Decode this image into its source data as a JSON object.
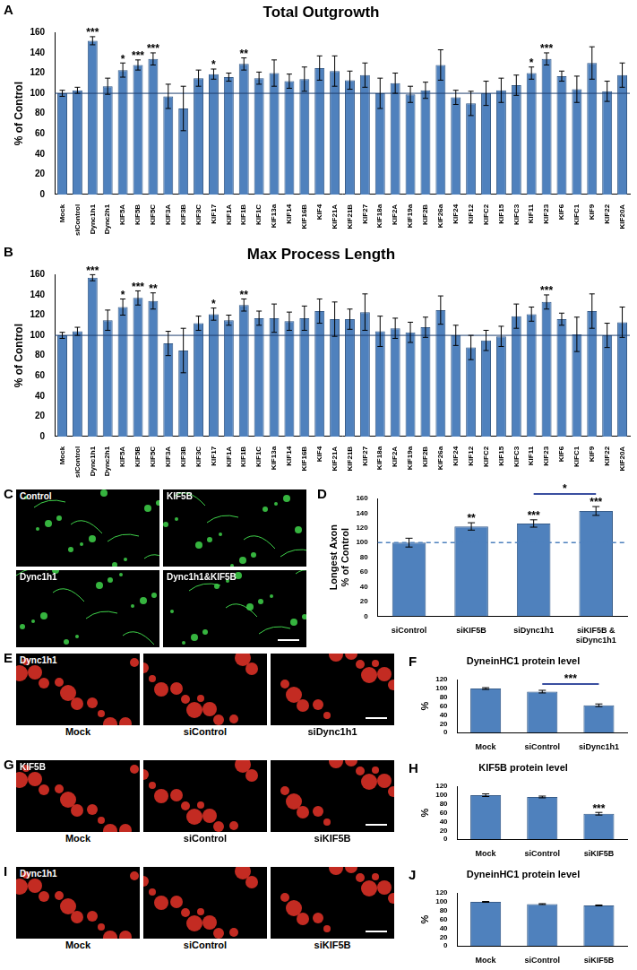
{
  "chart_data": [
    {
      "panel": "A",
      "type": "bar",
      "title": "Total Outgrowth",
      "y_label": "% of Control",
      "color": "#4f81bd",
      "categories": [
        "Mock",
        "siControl",
        "Dync1h1",
        "Dync2h1",
        "KIF5A",
        "KIF5B",
        "KIF5C",
        "KIF3A",
        "KIF3B",
        "KIF3C",
        "KIF17",
        "KIF1A",
        "KIF1B",
        "KIF1C",
        "KIF13a",
        "KIF14",
        "KIF16B",
        "KIF4",
        "KIF21A",
        "KIF21B",
        "KIF27",
        "KIF18a",
        "KIF2A",
        "KIF19a",
        "KIF2B",
        "KIF26a",
        "KIF24",
        "KIF12",
        "KIFC2",
        "KIF15",
        "KIFC3",
        "KIF11",
        "KIF23",
        "KIF6",
        "KIFC1",
        "KIF9",
        "KIF22",
        "KIF20A"
      ],
      "values": [
        100,
        103,
        152,
        107,
        123,
        128,
        134,
        97,
        85,
        115,
        119,
        116,
        129,
        115,
        120,
        112,
        114,
        125,
        122,
        113,
        118,
        100,
        110,
        99,
        103,
        128,
        96,
        90,
        100,
        103,
        108,
        120,
        134,
        117,
        104,
        130,
        102,
        118
      ],
      "errors": [
        3,
        3,
        4,
        8,
        7,
        5,
        6,
        12,
        22,
        8,
        5,
        4,
        6,
        6,
        13,
        7,
        12,
        12,
        15,
        9,
        12,
        15,
        10,
        8,
        8,
        15,
        7,
        12,
        12,
        12,
        10,
        6,
        6,
        5,
        13,
        16,
        10,
        12
      ],
      "annotations": [
        {
          "category": "Dync1h1",
          "text": "***"
        },
        {
          "category": "KIF5A",
          "text": "*"
        },
        {
          "category": "KIF5B",
          "text": "***"
        },
        {
          "category": "KIF5C",
          "text": "***"
        },
        {
          "category": "KIF17",
          "text": "*"
        },
        {
          "category": "KIF1B",
          "text": "**"
        },
        {
          "category": "KIF11",
          "text": "*"
        },
        {
          "category": "KIF23",
          "text": "***"
        }
      ],
      "reference_line": {
        "value": 100,
        "line_style": "solid"
      },
      "ylim": [
        0,
        160
      ],
      "yticks": [
        0,
        20,
        40,
        60,
        80,
        100,
        120,
        140,
        160
      ],
      "grid": false
    },
    {
      "panel": "B",
      "type": "bar",
      "title": "Max Process Length",
      "y_label": "% of Control",
      "color": "#4f81bd",
      "categories": [
        "Mock",
        "siControl",
        "Dync1h1",
        "Dync2h1",
        "KIF5A",
        "KIF5B",
        "KIF5C",
        "KIF3A",
        "KIF3B",
        "KIF3C",
        "KIF17",
        "KIF1A",
        "KIF1B",
        "KIF1C",
        "KIF13a",
        "KIF14",
        "KIF16B",
        "KIF4",
        "KIF21A",
        "KIF21B",
        "KIF27",
        "KIF18a",
        "KIF2A",
        "KIF19a",
        "KIF2B",
        "KIF26a",
        "KIF24",
        "KIF12",
        "KIFC2",
        "KIF15",
        "KIFC3",
        "KIF11",
        "KIF23",
        "KIF6",
        "KIFC1",
        "KIF9",
        "KIF22",
        "KIF20A"
      ],
      "values": [
        100,
        104,
        157,
        115,
        128,
        137,
        134,
        92,
        85,
        112,
        121,
        115,
        130,
        117,
        117,
        114,
        117,
        124,
        116,
        116,
        123,
        104,
        107,
        103,
        108,
        125,
        100,
        88,
        95,
        99,
        119,
        121,
        133,
        116,
        101,
        124,
        100,
        113
      ],
      "errors": [
        3,
        4,
        3,
        10,
        8,
        7,
        8,
        12,
        22,
        7,
        6,
        5,
        6,
        7,
        14,
        9,
        12,
        12,
        17,
        10,
        18,
        15,
        10,
        10,
        10,
        14,
        10,
        12,
        10,
        10,
        12,
        7,
        7,
        6,
        17,
        17,
        12,
        15
      ],
      "annotations": [
        {
          "category": "Dync1h1",
          "text": "***"
        },
        {
          "category": "KIF5A",
          "text": "*"
        },
        {
          "category": "KIF5B",
          "text": "***"
        },
        {
          "category": "KIF5C",
          "text": "**"
        },
        {
          "category": "KIF17",
          "text": "*"
        },
        {
          "category": "KIF1B",
          "text": "**"
        },
        {
          "category": "KIF23",
          "text": "***"
        }
      ],
      "reference_line": {
        "value": 100,
        "line_style": "solid"
      },
      "ylim": [
        0,
        160
      ],
      "yticks": [
        0,
        20,
        40,
        60,
        80,
        100,
        120,
        140,
        160
      ],
      "grid": false
    },
    {
      "panel": "D",
      "type": "bar",
      "y_label": "Longest Axon\n% of Control",
      "color": "#4f81bd",
      "categories": [
        "siControl",
        "siKIF5B",
        "siDync1h1",
        "siKIF5B & siDync1h1"
      ],
      "values": [
        100,
        122,
        126,
        143
      ],
      "errors": [
        6,
        5,
        5,
        6
      ],
      "annotations": [
        {
          "category": "siKIF5B",
          "text": "**"
        },
        {
          "category": "siDync1h1",
          "text": "***"
        },
        {
          "category": "siKIF5B & siDync1h1",
          "text": "***"
        }
      ],
      "brackets": [
        {
          "from": "siDync1h1",
          "to": "siKIF5B & siDync1h1",
          "text": "*"
        }
      ],
      "reference_line": {
        "value": 100,
        "line_style": "dashed"
      },
      "ylim": [
        0,
        160
      ],
      "yticks": [
        0,
        20,
        40,
        60,
        80,
        100,
        120,
        140,
        160
      ],
      "grid": false
    },
    {
      "panel": "F",
      "type": "bar",
      "title": "DyneinHC1 protein level",
      "y_label": "%",
      "color": "#4f81bd",
      "categories": [
        "Mock",
        "siControl",
        "siDync1h1"
      ],
      "values": [
        100,
        93,
        62
      ],
      "errors": [
        2,
        3,
        3
      ],
      "brackets": [
        {
          "from": "siControl",
          "to": "siDync1h1",
          "text": "***"
        }
      ],
      "ylim": [
        0,
        120
      ],
      "yticks": [
        0,
        20,
        40,
        60,
        80,
        100,
        120
      ],
      "grid": false
    },
    {
      "panel": "H",
      "type": "bar",
      "title": "KIF5B protein level",
      "y_label": "%",
      "color": "#4f81bd",
      "categories": [
        "Mock",
        "siControl",
        "siKIF5B"
      ],
      "values": [
        100,
        96,
        58
      ],
      "errors": [
        3,
        2,
        3
      ],
      "annotations": [
        {
          "category": "siKIF5B",
          "text": "***"
        }
      ],
      "ylim": [
        0,
        120
      ],
      "yticks": [
        0,
        20,
        40,
        60,
        80,
        100,
        120
      ],
      "grid": false
    },
    {
      "panel": "J",
      "type": "bar",
      "title": "DyneinHC1 protein level",
      "y_label": "%",
      "color": "#4f81bd",
      "categories": [
        "Mock",
        "siControl",
        "siKIF5B"
      ],
      "values": [
        100,
        95,
        92
      ],
      "errors": [
        1,
        1,
        1
      ],
      "ylim": [
        0,
        120
      ],
      "yticks": [
        0,
        20,
        40,
        60,
        80,
        100,
        120
      ],
      "grid": false
    }
  ],
  "images": [
    {
      "panel": "C",
      "color": "#3fd34a",
      "labels": [
        "Control",
        "KIF5B",
        "Dync1h1",
        "Dync1h1&KIF5B"
      ]
    },
    {
      "panel": "E",
      "color": "#e53228",
      "stain": "Dync1h1",
      "captions": [
        "Mock",
        "siControl",
        "siDync1h1"
      ]
    },
    {
      "panel": "G",
      "color": "#e53228",
      "stain": "KIF5B",
      "captions": [
        "Mock",
        "siControl",
        "siKIF5B"
      ]
    },
    {
      "panel": "I",
      "color": "#e53228",
      "stain": "Dync1h1",
      "captions": [
        "Mock",
        "siControl",
        "siKIF5B"
      ]
    }
  ]
}
